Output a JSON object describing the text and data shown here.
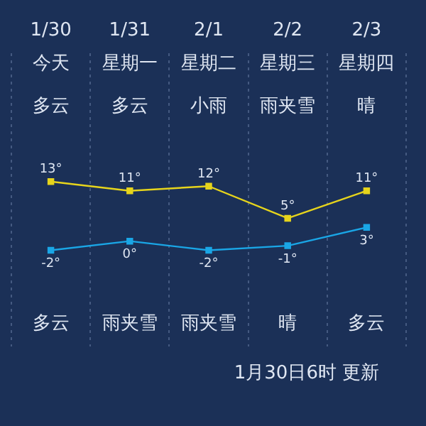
{
  "chart_data": {
    "type": "line",
    "categories": [
      "1/30",
      "1/31",
      "2/1",
      "2/2",
      "2/3"
    ],
    "series": [
      {
        "color": "#e6d41c",
        "values": [
          13,
          11,
          12,
          5,
          11
        ],
        "value_labels": [
          "13°",
          "11°",
          "12°",
          "5°",
          "11°"
        ]
      },
      {
        "color": "#1aa6e6",
        "values": [
          -2,
          0,
          -2,
          -1,
          3
        ],
        "value_labels": [
          "-2°",
          "0°",
          "-2°",
          "-1°",
          "3°"
        ]
      }
    ],
    "ylim": [
      -23,
      41
    ],
    "grid": "x",
    "marker": "square",
    "legend": false,
    "annotations": [
      "今天",
      "星期一",
      "星期二",
      "星期三",
      "星期四",
      "多云",
      "多云",
      "小雨",
      "雨夹雪",
      "晴",
      "多云",
      "雨夹雪",
      "雨夹雪",
      "晴",
      "多云",
      "1月30日6时 更新"
    ]
  }
}
